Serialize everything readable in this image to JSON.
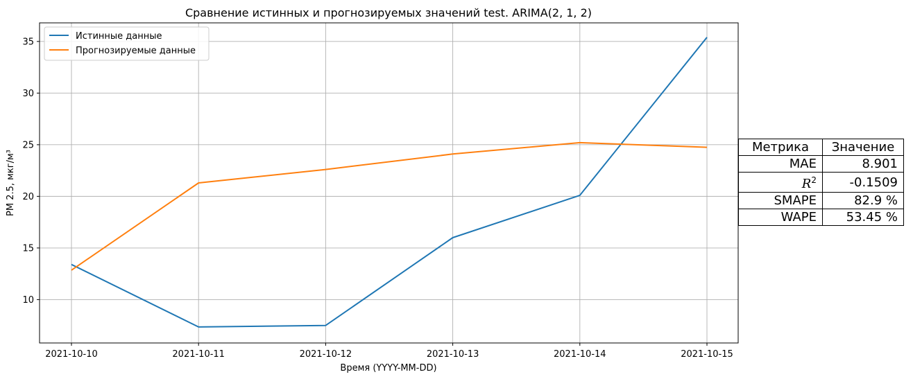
{
  "chart_data": {
    "type": "line",
    "title": "Сравнение истинных и прогнозируемых значений test. ARIMA(2, 1, 2)",
    "xlabel": "Время (YYYY-MM-DD)",
    "ylabel": "PM 2.5, мкг/м³",
    "categories": [
      "2021-10-10",
      "2021-10-11",
      "2021-10-12",
      "2021-10-13",
      "2021-10-14",
      "2021-10-15"
    ],
    "y_ticks": [
      10,
      15,
      20,
      25,
      30,
      35
    ],
    "ylim": [
      5.8,
      36.8
    ],
    "grid": true,
    "legend_position": "upper-left",
    "series": [
      {
        "name": "Истинные данные",
        "color": "#1f77b4",
        "values": [
          13.4,
          7.35,
          7.5,
          16.0,
          20.1,
          35.4
        ]
      },
      {
        "name": "Прогнозируемые данные",
        "color": "#ff7f0e",
        "values": [
          12.85,
          21.3,
          22.6,
          24.1,
          25.2,
          24.75
        ]
      }
    ]
  },
  "metrics_table": {
    "headers": [
      "Метрика",
      "Значение"
    ],
    "rows": [
      {
        "metric": "MAE",
        "value": "8.901"
      },
      {
        "metric": "R",
        "metric_sup": "2",
        "value": "-0.1509"
      },
      {
        "metric": "SMAPE",
        "value": "82.9 %"
      },
      {
        "metric": "WAPE",
        "value": "53.45 %"
      }
    ]
  }
}
